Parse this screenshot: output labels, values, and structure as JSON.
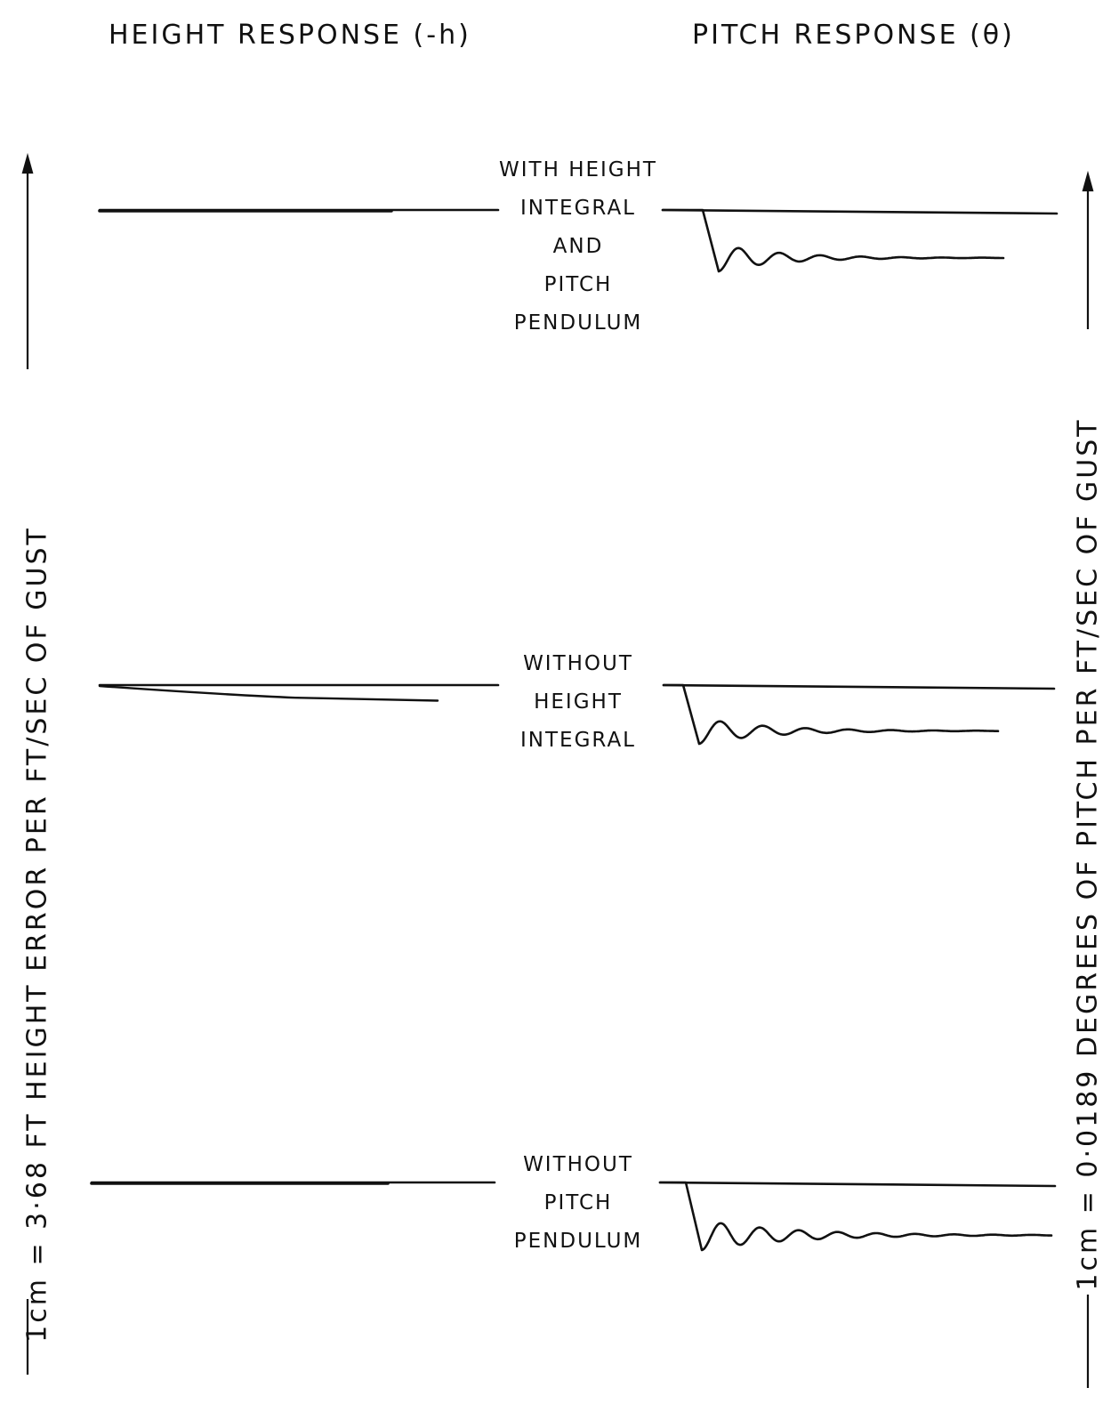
{
  "titles": {
    "height": "HEIGHT RESPONSE (-h)",
    "pitch": "PITCH RESPONSE (θ)"
  },
  "scale_labels": {
    "height": "1cm = 3·68 FT HEIGHT ERROR PER FT/SEC OF GUST",
    "pitch": "1cm = 0·0189 DEGREES OF PITCH PER FT/SEC OF GUST"
  },
  "chart_data": {
    "type": "line",
    "panels": [
      {
        "label": [
          "WITH HEIGHT",
          "INTEGRAL",
          "AND",
          "PITCH",
          "PENDULUM"
        ],
        "height_response": {
          "drift": 0.0,
          "lines": 2
        },
        "pitch_response": {
          "step": 1.0,
          "oscillation_cycles": 7,
          "damping": 0.3
        }
      },
      {
        "label": [
          "WITHOUT",
          "HEIGHT",
          "INTEGRAL"
        ],
        "height_response": {
          "drift": 0.3,
          "lines": 2
        },
        "pitch_response": {
          "step": 0.9,
          "oscillation_cycles": 7,
          "damping": 0.28
        }
      },
      {
        "label": [
          "WITHOUT",
          "PITCH",
          "PENDULUM"
        ],
        "height_response": {
          "drift": 0.0,
          "lines": 2
        },
        "pitch_response": {
          "step": 1.0,
          "oscillation_cycles": 9,
          "damping": 0.2
        }
      }
    ]
  }
}
